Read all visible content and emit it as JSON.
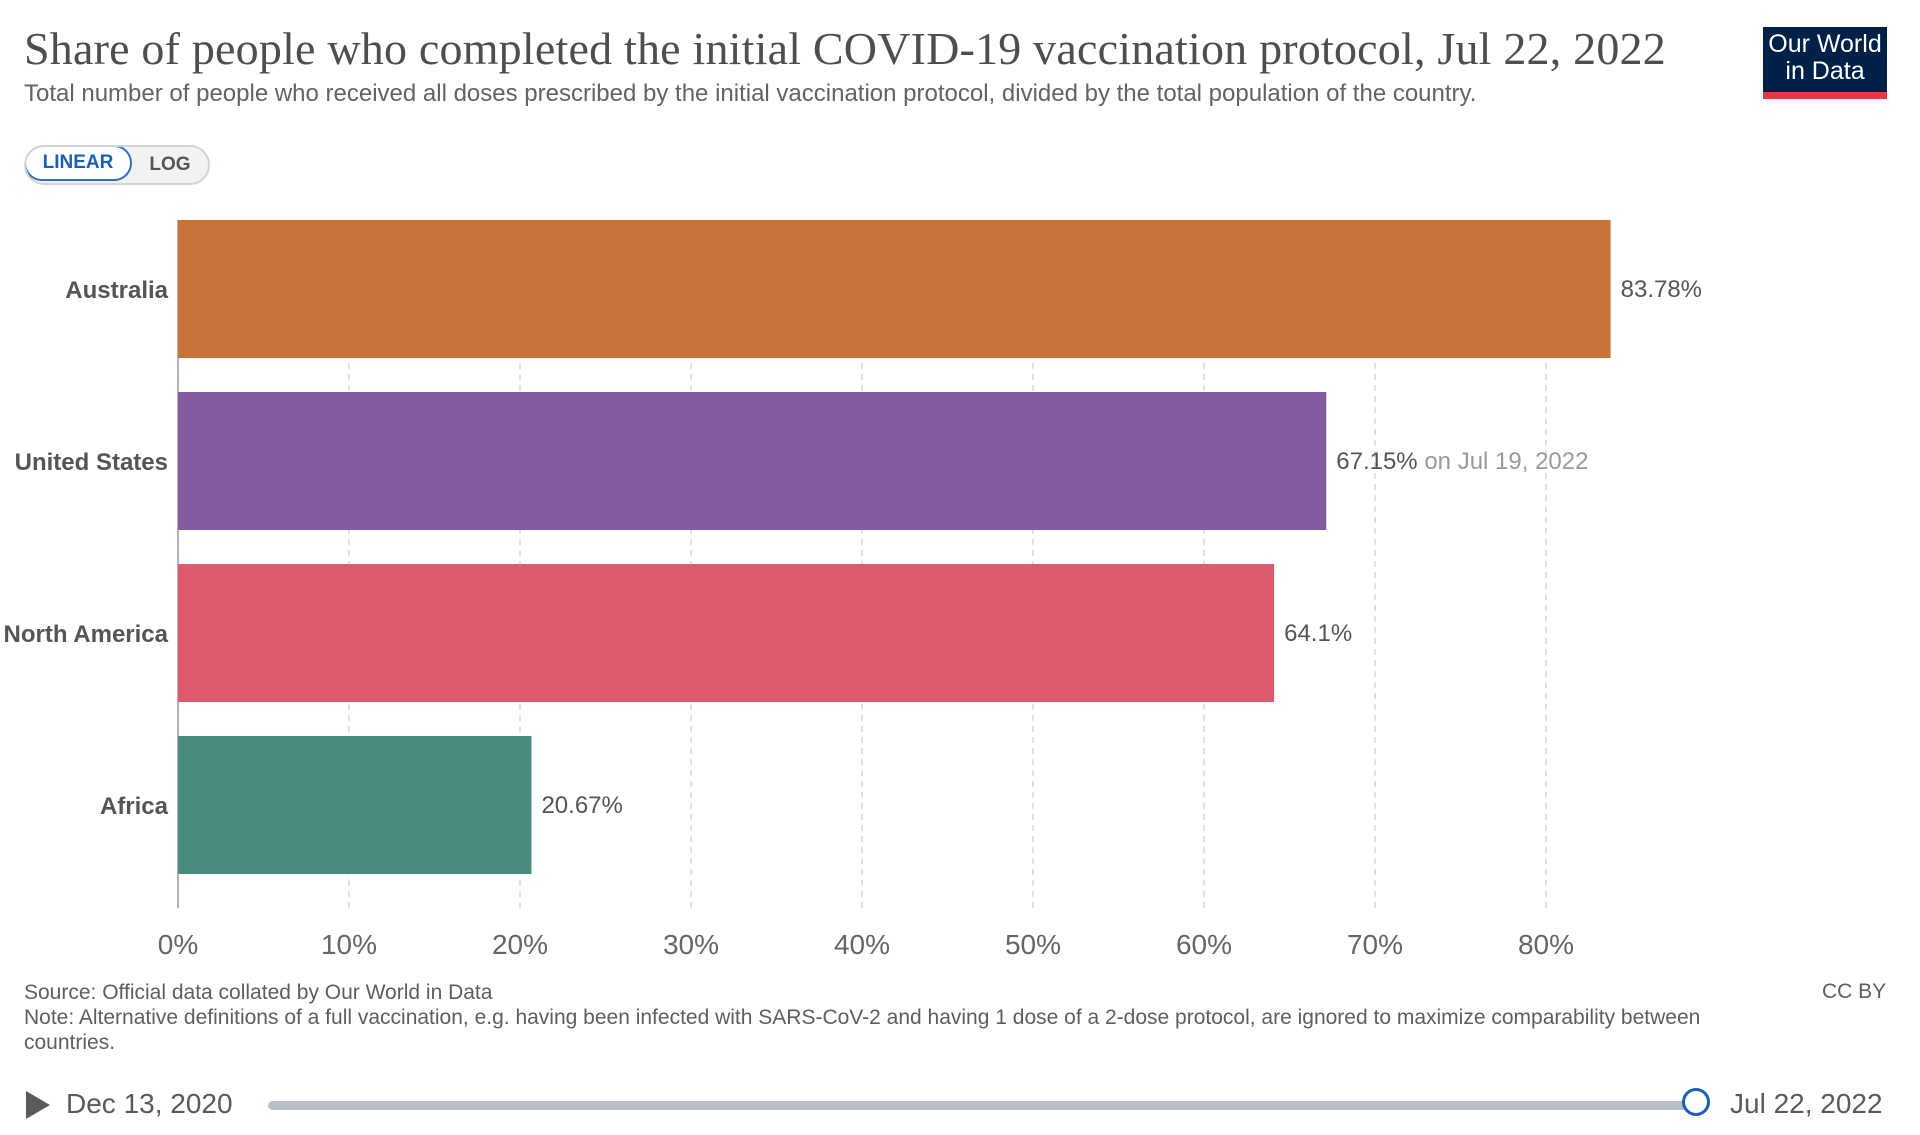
{
  "header": {
    "title": "Share of people who completed the initial COVID-19 vaccination protocol, Jul 22, 2022",
    "subtitle": "Total number of people who received all doses prescribed by the initial vaccination protocol, divided by the total population of the country.",
    "logo_line1": "Our World",
    "logo_line2": "in Data"
  },
  "scale_toggle": {
    "linear_label": "LINEAR",
    "log_label": "LOG",
    "selected": "LINEAR"
  },
  "chart_data": {
    "type": "bar",
    "orientation": "horizontal",
    "title": "Share of people who completed the initial COVID-19 vaccination protocol, Jul 22, 2022",
    "categories": [
      "Australia",
      "United States",
      "North America",
      "Africa"
    ],
    "values": [
      83.78,
      67.15,
      64.1,
      20.67
    ],
    "value_labels": [
      "83.78%",
      "67.15%",
      "64.1%",
      "20.67%"
    ],
    "value_notes": [
      "",
      "on Jul 19, 2022",
      "",
      ""
    ],
    "colors": [
      "#c8733a",
      "#835ba0",
      "#dd5a6c",
      "#4a8b80"
    ],
    "xlim": [
      0,
      85
    ],
    "xticks": [
      0,
      10,
      20,
      30,
      40,
      50,
      60,
      70,
      80
    ],
    "xtick_labels": [
      "0%",
      "10%",
      "20%",
      "30%",
      "40%",
      "50%",
      "60%",
      "70%",
      "80%"
    ],
    "grid": "vertical dashed",
    "xlabel": "",
    "ylabel": ""
  },
  "footer": {
    "source": "Source: Official data collated by Our World in Data",
    "note": "Note: Alternative definitions of a full vaccination, e.g. having been infected with SARS-CoV-2 and having 1 dose of a 2-dose protocol, are ignored to maximize comparability between countries.",
    "license": "CC BY"
  },
  "timeline": {
    "start_label": "Dec 13, 2020",
    "end_label": "Jul 22, 2022",
    "position": 1.0
  },
  "colors": {
    "accent": "#1a5fb4",
    "logo_bg": "#002147",
    "logo_bar": "#e63946"
  }
}
